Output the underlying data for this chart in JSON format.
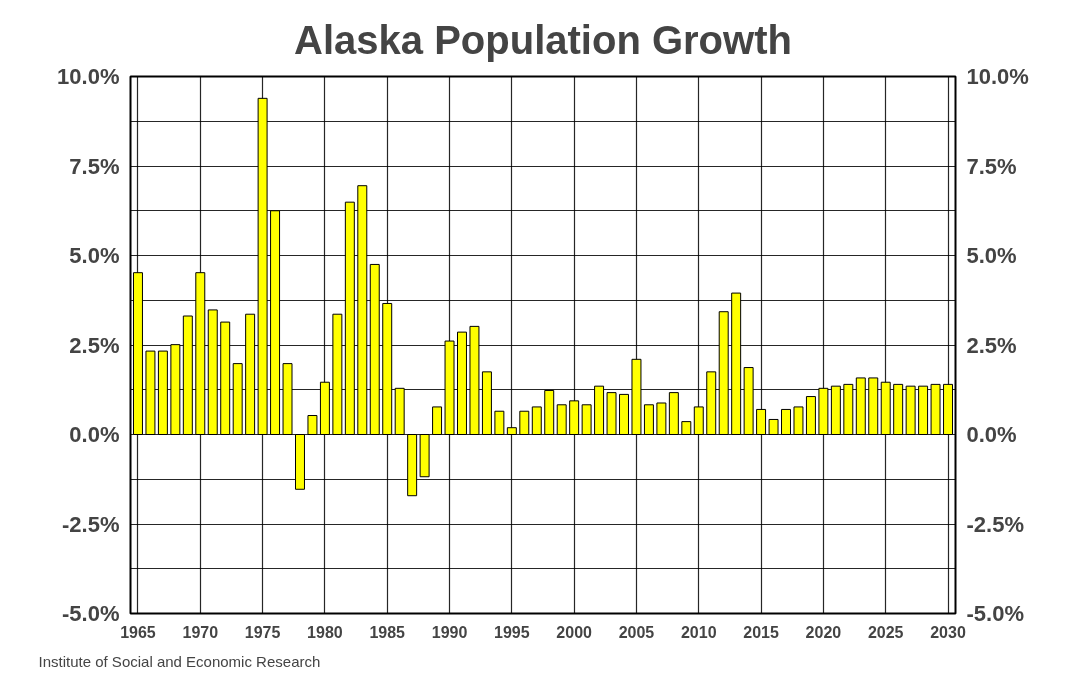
{
  "chart_data": {
    "type": "bar",
    "title": "Alaska Population Growth",
    "x": [
      1965,
      1966,
      1967,
      1968,
      1969,
      1970,
      1971,
      1972,
      1973,
      1974,
      1975,
      1976,
      1977,
      1978,
      1979,
      1980,
      1981,
      1982,
      1983,
      1984,
      1985,
      1986,
      1987,
      1988,
      1989,
      1990,
      1991,
      1992,
      1993,
      1994,
      1995,
      1996,
      1997,
      1998,
      1999,
      2000,
      2001,
      2002,
      2003,
      2004,
      2005,
      2006,
      2007,
      2008,
      2009,
      2010,
      2011,
      2012,
      2013,
      2014,
      2015,
      2016,
      2017,
      2018,
      2019,
      2020,
      2021,
      2022,
      2023,
      2024,
      2025,
      2026,
      2027,
      2028,
      2029,
      2030
    ],
    "values": [
      4.52,
      2.33,
      2.33,
      2.51,
      3.31,
      4.52,
      3.48,
      3.14,
      1.98,
      3.36,
      9.39,
      6.25,
      1.98,
      -1.53,
      0.53,
      1.46,
      3.36,
      6.49,
      6.95,
      4.75,
      3.66,
      1.29,
      -1.71,
      -1.18,
      0.77,
      2.61,
      2.86,
      3.02,
      1.75,
      0.65,
      0.19,
      0.65,
      0.77,
      1.23,
      0.83,
      0.94,
      0.83,
      1.35,
      1.17,
      1.12,
      2.1,
      0.83,
      0.88,
      1.17,
      0.36,
      0.77,
      1.75,
      3.43,
      3.95,
      1.87,
      0.7,
      0.42,
      0.7,
      0.77,
      1.06,
      1.29,
      1.35,
      1.4,
      1.58,
      1.58,
      1.46,
      1.4,
      1.35,
      1.35,
      1.4,
      1.4
    ],
    "color": "#ffff00",
    "xlim": [
      1964.4,
      2030.6
    ],
    "xticks": [
      1965,
      1970,
      1975,
      1980,
      1985,
      1990,
      1995,
      2000,
      2005,
      2010,
      2015,
      2020,
      2025,
      2030
    ],
    "ylim": [
      -5,
      10
    ],
    "yticks": [
      {
        "value": -5,
        "label": "-5.0%"
      },
      {
        "value": -3.75,
        "label": null
      },
      {
        "value": -2.5,
        "label": "-2.5%"
      },
      {
        "value": -1.25,
        "label": null
      },
      {
        "value": 0,
        "label": "0.0%"
      },
      {
        "value": 1.25,
        "label": null
      },
      {
        "value": 2.5,
        "label": "2.5%"
      },
      {
        "value": 3.75,
        "label": null
      },
      {
        "value": 5,
        "label": "5.0%"
      },
      {
        "value": 6.25,
        "label": null
      },
      {
        "value": 7.5,
        "label": "7.5%"
      },
      {
        "value": 8.75,
        "label": null
      },
      {
        "value": 10,
        "label": "10.0%"
      }
    ],
    "y2lim": [
      -5,
      10
    ],
    "y2ticks": [
      {
        "value": -5,
        "label": "-5.0%"
      },
      {
        "value": -3.75,
        "label": null
      },
      {
        "value": -2.5,
        "label": "-2.5%"
      },
      {
        "value": -1.25,
        "label": null
      },
      {
        "value": 0,
        "label": "0.0%"
      },
      {
        "value": 1.25,
        "label": null
      },
      {
        "value": 2.5,
        "label": "2.5%"
      },
      {
        "value": 3.75,
        "label": null
      },
      {
        "value": 5,
        "label": "5.0%"
      },
      {
        "value": 6.25,
        "label": null
      },
      {
        "value": 7.5,
        "label": "7.5%"
      },
      {
        "value": 8.75,
        "label": null
      },
      {
        "value": 10,
        "label": "10.0%"
      }
    ],
    "grid": true,
    "annotations": [
      "Institute of Social and Economic Research"
    ]
  }
}
